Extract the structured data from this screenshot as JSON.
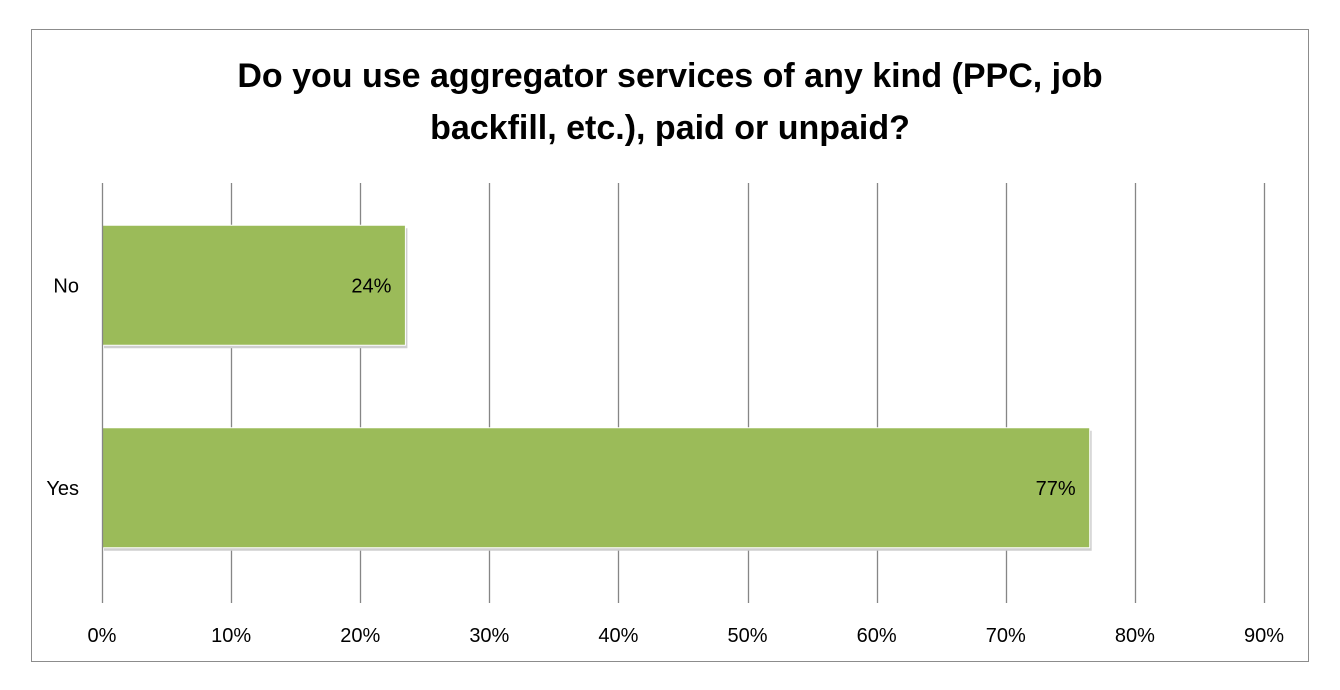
{
  "chart_data": {
    "type": "bar",
    "orientation": "horizontal",
    "title_lines": [
      "Do you use aggregator services of any kind (PPC, job",
      "backfill, etc.), paid or unpaid?"
    ],
    "categories": [
      "No",
      "Yes"
    ],
    "values": [
      0.235,
      0.765
    ],
    "data_labels": [
      "24%",
      "77%"
    ],
    "xlim": [
      0,
      0.9
    ],
    "xticks": [
      0,
      0.1,
      0.2,
      0.3,
      0.4,
      0.5,
      0.6,
      0.7,
      0.8,
      0.9
    ],
    "xtick_labels": [
      "0%",
      "10%",
      "20%",
      "30%",
      "40%",
      "50%",
      "60%",
      "70%",
      "80%",
      "90%"
    ],
    "grid": "vertical",
    "legend": "none",
    "bar_color": "#9bbb59",
    "grid_color": "#868686"
  }
}
